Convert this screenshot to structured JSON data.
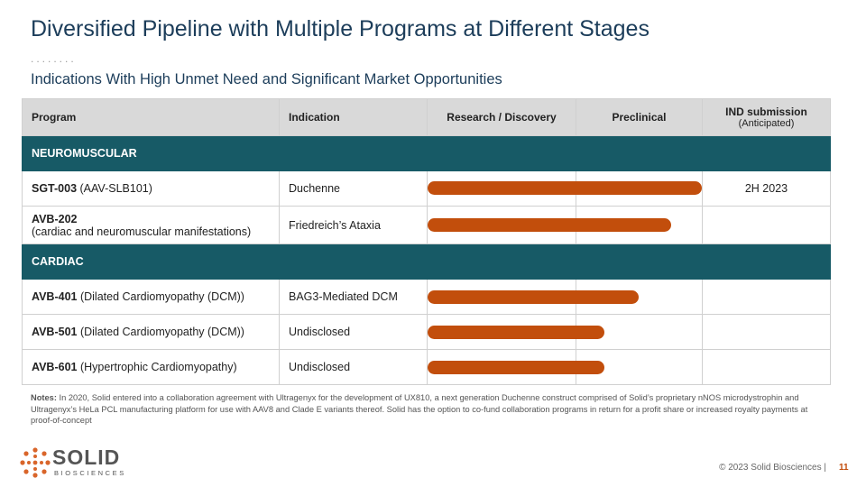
{
  "header": {
    "title": "Diversified Pipeline with Multiple Programs at Different Stages",
    "subtitle": "Indications With High Unmet Need and Significant Market Opportunities"
  },
  "table": {
    "columns": [
      "Program",
      "Indication",
      "Research / Discovery",
      "Preclinical"
    ],
    "ind_column": {
      "title": "IND submission",
      "note": "(Anticipated)"
    },
    "sections": [
      {
        "name": "NEUROMUSCULAR",
        "rows": [
          {
            "program": "SGT-003",
            "detail": "(AAV-SLB101)",
            "indication": "Duchenne",
            "ind": "2H 2023"
          },
          {
            "program": "AVB-202",
            "detail": "(cardiac and neuromuscular manifestations)",
            "indication": "Friedreich’s Ataxia"
          }
        ]
      },
      {
        "name": "CARDIAC",
        "rows": [
          {
            "program": "AVB-401",
            "detail": "(Dilated Cardiomyopathy (DCM))",
            "indication": "BAG3-Mediated DCM"
          },
          {
            "program": "AVB-501",
            "detail": "(Dilated Cardiomyopathy (DCM))",
            "indication": "Undisclosed"
          },
          {
            "program": "AVB-601",
            "detail": "(Hypertrophic Cardiomyopathy)",
            "indication": "Undisclosed"
          }
        ]
      }
    ]
  },
  "notes": {
    "label": "Notes:",
    "text": "In 2020, Solid entered into a collaboration agreement with Ultragenyx for the development of UX810, a next generation Duchenne construct comprised of Solid’s proprietary nNOS microdystrophin and Ultragenyx’s HeLa PCL manufacturing platform for use with AAV8 and Clade E variants thereof. Solid has the option to co-fund collaboration programs in return for a profit share or increased royalty payments at proof-of-concept"
  },
  "footer": {
    "copyright": "© 2023 Solid Biosciences |",
    "page": "11",
    "logo_name": "SOLID",
    "logo_sub": "BIOSCIENCES"
  }
}
